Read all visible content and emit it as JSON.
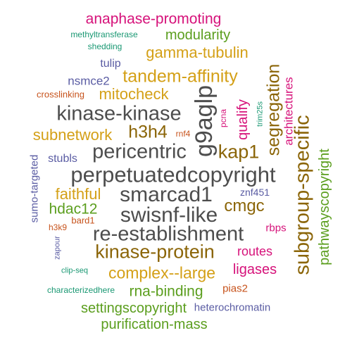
{
  "colors": {
    "dark": "#4d4d4d",
    "brown": "#8b6508",
    "orange": "#d4a017",
    "green": "#5b9e1e",
    "magenta": "#d6127a",
    "blue": "#5a5ca3",
    "rust": "#c7531c",
    "teal": "#1a9873"
  },
  "words": [
    {
      "text": "anaphase-promoting",
      "color": "magenta"
    },
    {
      "text": "methyltransferase",
      "color": "teal"
    },
    {
      "text": "modularity",
      "color": "green"
    },
    {
      "text": "shedding",
      "color": "teal"
    },
    {
      "text": "gamma-tubulin",
      "color": "orange"
    },
    {
      "text": "tulip",
      "color": "blue"
    },
    {
      "text": "tandem-affinity",
      "color": "orange"
    },
    {
      "text": "nsmce2",
      "color": "blue"
    },
    {
      "text": "mitocheck",
      "color": "orange"
    },
    {
      "text": "crosslinking",
      "color": "rust"
    },
    {
      "text": "kinase-kinase",
      "color": "dark"
    },
    {
      "text": "h3h4",
      "color": "brown"
    },
    {
      "text": "rnf4",
      "color": "rust"
    },
    {
      "text": "subnetwork",
      "color": "orange"
    },
    {
      "text": "pericentric",
      "color": "dark"
    },
    {
      "text": "stubls",
      "color": "blue"
    },
    {
      "text": "kap1",
      "color": "brown"
    },
    {
      "text": "perpetuatedcopyright",
      "color": "dark"
    },
    {
      "text": "smarcad1",
      "color": "dark"
    },
    {
      "text": "faithful",
      "color": "orange"
    },
    {
      "text": "znf451",
      "color": "blue"
    },
    {
      "text": "hdac12",
      "color": "green"
    },
    {
      "text": "swisnf-like",
      "color": "dark"
    },
    {
      "text": "cmgc",
      "color": "brown"
    },
    {
      "text": "h3k9",
      "color": "rust"
    },
    {
      "text": "bard1",
      "color": "rust"
    },
    {
      "text": "re-establishment",
      "color": "dark"
    },
    {
      "text": "rbps",
      "color": "magenta"
    },
    {
      "text": "kinase-protein",
      "color": "brown"
    },
    {
      "text": "routes",
      "color": "magenta"
    },
    {
      "text": "clip-seq",
      "color": "teal"
    },
    {
      "text": "complex--large",
      "color": "orange"
    },
    {
      "text": "ligases",
      "color": "magenta"
    },
    {
      "text": "characterizedhere",
      "color": "teal"
    },
    {
      "text": "rna-binding",
      "color": "green"
    },
    {
      "text": "pias2",
      "color": "rust"
    },
    {
      "text": "settingscopyright",
      "color": "green"
    },
    {
      "text": "heterochromatin",
      "color": "blue"
    },
    {
      "text": "purification-mass",
      "color": "green"
    },
    {
      "text": "g9aglp",
      "color": "dark"
    },
    {
      "text": "segregation",
      "color": "brown"
    },
    {
      "text": "pcna",
      "color": "magenta"
    },
    {
      "text": "qualify",
      "color": "magenta"
    },
    {
      "text": "architectures",
      "color": "magenta"
    },
    {
      "text": "trim25s",
      "color": "teal"
    },
    {
      "text": "subgroup-specific",
      "color": "brown"
    },
    {
      "text": "pathwayscopyright",
      "color": "green"
    },
    {
      "text": "sumo-targeted",
      "color": "blue"
    },
    {
      "text": "zapour",
      "color": "blue"
    }
  ]
}
